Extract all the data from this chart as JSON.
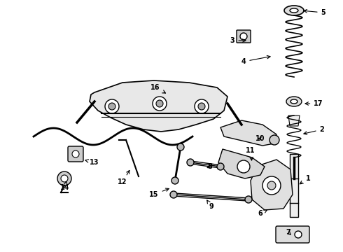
{
  "bg_color": "#ffffff",
  "line_color": "#000000",
  "fig_width": 4.9,
  "fig_height": 3.6,
  "dpi": 100,
  "labels_data": [
    [
      1,
      440,
      255,
      425,
      265
    ],
    [
      2,
      460,
      185,
      430,
      192
    ],
    [
      3,
      332,
      58,
      355,
      58
    ],
    [
      4,
      348,
      88,
      390,
      80
    ],
    [
      5,
      462,
      18,
      430,
      15
    ],
    [
      6,
      372,
      305,
      385,
      298
    ],
    [
      7,
      412,
      332,
      418,
      338
    ],
    [
      8,
      300,
      238,
      295,
      240
    ],
    [
      9,
      302,
      295,
      295,
      285
    ],
    [
      10,
      372,
      198,
      368,
      198
    ],
    [
      11,
      358,
      215,
      360,
      233
    ],
    [
      12,
      175,
      260,
      187,
      240
    ],
    [
      13,
      135,
      232,
      118,
      228
    ],
    [
      14,
      93,
      268,
      95,
      258
    ],
    [
      15,
      220,
      278,
      245,
      268
    ],
    [
      16,
      222,
      125,
      240,
      135
    ],
    [
      17,
      455,
      148,
      432,
      148
    ]
  ]
}
